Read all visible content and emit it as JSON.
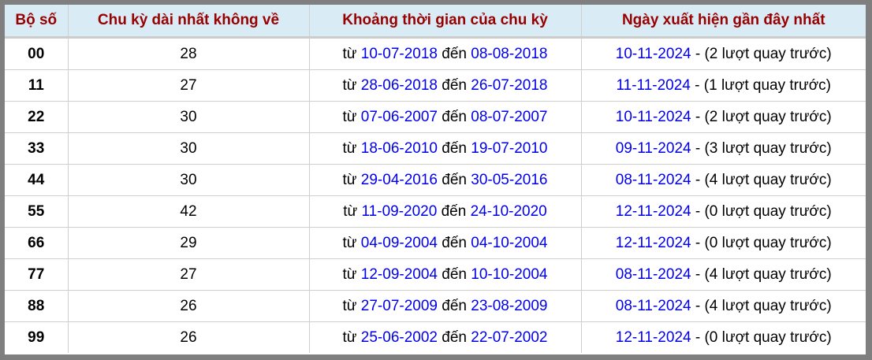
{
  "headers": [
    "Bộ số",
    "Chu kỳ dài nhất không về",
    "Khoảng thời gian của chu kỳ",
    "Ngày xuất hiện gần đây nhất"
  ],
  "labels": {
    "from": "từ",
    "to": "đến",
    "sep": "- ",
    "suffix": " lượt quay trước)",
    "open": "("
  },
  "colors": {
    "header_text": "#990000",
    "header_bg": "#d9ecf6",
    "date": "#0000ee",
    "frame": "#7f7f7f"
  },
  "rows": [
    {
      "num": "00",
      "cycle": "28",
      "start": "10-07-2018",
      "end": "08-08-2018",
      "last": "10-11-2024",
      "ago": "2"
    },
    {
      "num": "11",
      "cycle": "27",
      "start": "28-06-2018",
      "end": "26-07-2018",
      "last": "11-11-2024",
      "ago": "1"
    },
    {
      "num": "22",
      "cycle": "30",
      "start": "07-06-2007",
      "end": "08-07-2007",
      "last": "10-11-2024",
      "ago": "2"
    },
    {
      "num": "33",
      "cycle": "30",
      "start": "18-06-2010",
      "end": "19-07-2010",
      "last": "09-11-2024",
      "ago": "3"
    },
    {
      "num": "44",
      "cycle": "30",
      "start": "29-04-2016",
      "end": "30-05-2016",
      "last": "08-11-2024",
      "ago": "4"
    },
    {
      "num": "55",
      "cycle": "42",
      "start": "11-09-2020",
      "end": "24-10-2020",
      "last": "12-11-2024",
      "ago": "0"
    },
    {
      "num": "66",
      "cycle": "29",
      "start": "04-09-2004",
      "end": "04-10-2004",
      "last": "12-11-2024",
      "ago": "0"
    },
    {
      "num": "77",
      "cycle": "27",
      "start": "12-09-2004",
      "end": "10-10-2004",
      "last": "08-11-2024",
      "ago": "4"
    },
    {
      "num": "88",
      "cycle": "26",
      "start": "27-07-2009",
      "end": "23-08-2009",
      "last": "08-11-2024",
      "ago": "4"
    },
    {
      "num": "99",
      "cycle": "26",
      "start": "25-06-2002",
      "end": "22-07-2002",
      "last": "12-11-2024",
      "ago": "0"
    }
  ]
}
